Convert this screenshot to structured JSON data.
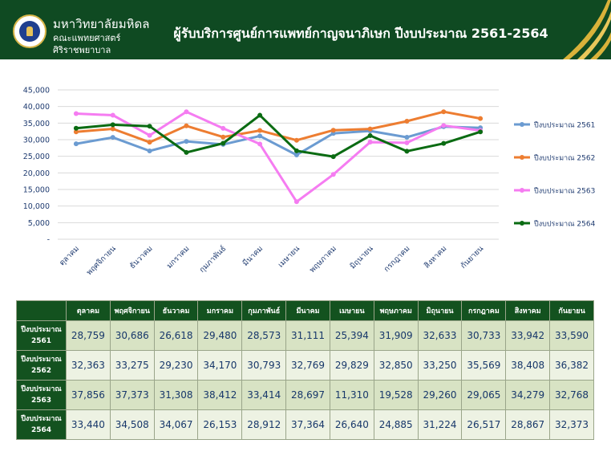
{
  "header": {
    "university": "มหาวิทยาลัยมหิดล",
    "faculty": "คณะแพทยศาสตร์",
    "hospital": "ศิริราชพยาบาล",
    "title": "ผู้รับบริการศูนย์การแพทย์กาญจนาภิเษก ปีงบประมาณ 2561-2564"
  },
  "chart_data": {
    "type": "line",
    "categories": [
      "ตุลาคม",
      "พฤศจิกายน",
      "ธันวาคม",
      "มกราคม",
      "กุมภาพันธ์",
      "มีนาคม",
      "เมษายน",
      "พฤษภาคม",
      "มิถุนายน",
      "กรกฎาคม",
      "สิงหาคม",
      "กันยายน"
    ],
    "y_ticks": [
      "-",
      "5,000",
      "10,000",
      "15,000",
      "20,000",
      "25,000",
      "30,000",
      "35,000",
      "40,000",
      "45,000"
    ],
    "ylim": [
      0,
      45000
    ],
    "grid": true,
    "legend": "right",
    "series": [
      {
        "name": "ปีงบประมาณ 2561",
        "color": "#6b9bd1",
        "values": [
          28759,
          30686,
          26618,
          29480,
          28573,
          31111,
          25394,
          31909,
          32633,
          30733,
          33942,
          33590
        ]
      },
      {
        "name": "ปีงบประมาณ 2562",
        "color": "#ed7d31",
        "values": [
          32363,
          33275,
          29230,
          34170,
          30793,
          32769,
          29829,
          32850,
          33250,
          35569,
          38408,
          36382
        ]
      },
      {
        "name": "ปีงบประมาณ 2563",
        "color": "#f57cf1",
        "values": [
          37856,
          37373,
          31308,
          38412,
          33414,
          28697,
          11310,
          19528,
          29260,
          29065,
          34279,
          32768
        ]
      },
      {
        "name": "ปีงบประมาณ 2564",
        "color": "#0a6b12",
        "values": [
          33440,
          34508,
          34067,
          26153,
          28912,
          37364,
          26640,
          24885,
          31224,
          26517,
          28867,
          32373
        ]
      }
    ]
  },
  "table": {
    "rows": [
      {
        "year_label": "ปีงบประมาณ",
        "year": "2561",
        "cells": [
          "28,759",
          "30,686",
          "26,618",
          "29,480",
          "28,573",
          "31,111",
          "25,394",
          "31,909",
          "32,633",
          "30,733",
          "33,942",
          "33,590"
        ]
      },
      {
        "year_label": "ปีงบประมาณ",
        "year": "2562",
        "cells": [
          "32,363",
          "33,275",
          "29,230",
          "34,170",
          "30,793",
          "32,769",
          "29,829",
          "32,850",
          "33,250",
          "35,569",
          "38,408",
          "36,382"
        ]
      },
      {
        "year_label": "ปีงบประมาณ",
        "year": "2563",
        "cells": [
          "37,856",
          "37,373",
          "31,308",
          "38,412",
          "33,414",
          "28,697",
          "11,310",
          "19,528",
          "29,260",
          "29,065",
          "34,279",
          "32,768"
        ]
      },
      {
        "year_label": "ปีงบประมาณ",
        "year": "2564",
        "cells": [
          "33,440",
          "34,508",
          "34,067",
          "26,153",
          "28,912",
          "37,364",
          "26,640",
          "24,885",
          "31,224",
          "26,517",
          "28,867",
          "32,373"
        ]
      }
    ]
  }
}
